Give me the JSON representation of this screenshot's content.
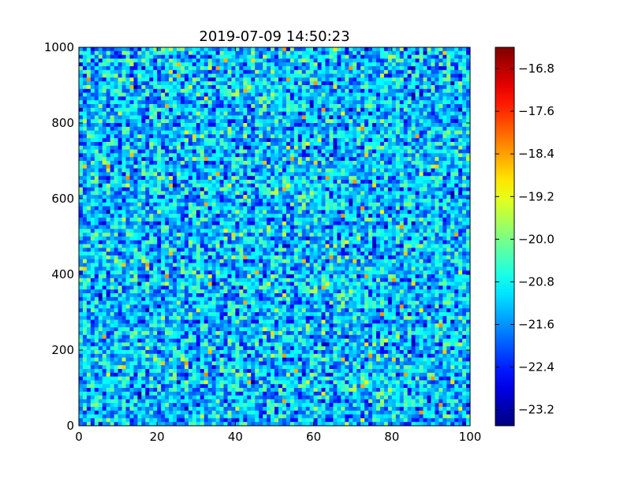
{
  "chart_data": {
    "type": "heatmap",
    "title": "2019-07-09 14:50:23",
    "xlabel": "",
    "ylabel": "",
    "xlim": [
      0,
      100
    ],
    "ylim": [
      0,
      1000
    ],
    "x_ticks": [
      0,
      20,
      40,
      60,
      80,
      100
    ],
    "y_ticks": [
      0,
      200,
      400,
      600,
      800,
      1000
    ],
    "grid": false,
    "colormap": "jet",
    "color_range": [
      -23.5,
      -16.4
    ],
    "colorbar": {
      "placement": "right",
      "ticks": [
        "−23.2",
        "−22.4",
        "−21.6",
        "−20.8",
        "−20.0",
        "−19.2",
        "−18.4",
        "−17.6",
        "−16.8"
      ],
      "tick_values": [
        -23.2,
        -22.4,
        -21.6,
        -20.8,
        -20.0,
        -19.2,
        -18.4,
        -17.6,
        -16.8
      ]
    },
    "cells": {
      "columns": 100,
      "rows": 100,
      "value_distribution": "noise",
      "typical_range": [
        -23.5,
        -19.0
      ],
      "occasional_max": -18.2,
      "median": -21.8
    }
  }
}
